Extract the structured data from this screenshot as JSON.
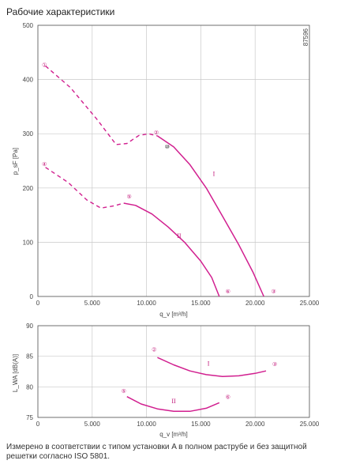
{
  "title": "Рабочие характеристики",
  "footnote": "Измерено в соответствии с типом установки A в полном раструбе и без защитной решетки согласно ISO 5801.",
  "colors": {
    "curve": "#d11f8f",
    "grid": "#c9c9c9",
    "axis": "#555555",
    "marker_text": "#c2187a"
  },
  "chart_data": [
    {
      "type": "line",
      "title": "",
      "xlabel": "q_v [m³/h]",
      "ylabel": "p_sF [Pa]",
      "xlim": [
        0,
        25000
      ],
      "ylim": [
        0,
        500
      ],
      "x_ticks": [
        "0",
        "5.000",
        "10.000",
        "15.000",
        "20.000",
        "25.000"
      ],
      "y_ticks": [
        "0",
        "100",
        "200",
        "300",
        "400",
        "500"
      ],
      "grid": true,
      "side_label": "87596",
      "series": [
        {
          "name": "I",
          "dashed": [
            [
              700,
              425
            ],
            [
              3000,
              385
            ],
            [
              5500,
              325
            ],
            [
              7200,
              280
            ],
            [
              8200,
              282
            ],
            [
              9300,
              297
            ],
            [
              10200,
              300
            ],
            [
              11000,
              296
            ]
          ],
          "solid": [
            [
              11000,
              296
            ],
            [
              12500,
              276
            ],
            [
              14000,
              243
            ],
            [
              15500,
              200
            ],
            [
              17000,
              148
            ],
            [
              18500,
              95
            ],
            [
              19800,
              45
            ],
            [
              20800,
              0
            ]
          ]
        },
        {
          "name": "II",
          "dashed": [
            [
              700,
              238
            ],
            [
              2800,
              210
            ],
            [
              4500,
              178
            ],
            [
              5800,
              163
            ],
            [
              7000,
              167
            ],
            [
              7900,
              172
            ]
          ],
          "solid": [
            [
              7900,
              172
            ],
            [
              9000,
              168
            ],
            [
              10500,
              152
            ],
            [
              12000,
              128
            ],
            [
              13500,
              100
            ],
            [
              15000,
              65
            ],
            [
              16000,
              35
            ],
            [
              16700,
              0
            ]
          ]
        }
      ],
      "markers": [
        {
          "label": "①",
          "x": 600,
          "y": 428
        },
        {
          "label": "②",
          "x": 10900,
          "y": 303
        },
        {
          "label": "⑩",
          "x": 11900,
          "y": 277
        },
        {
          "label": "③",
          "x": 21700,
          "y": 10
        },
        {
          "label": "④",
          "x": 600,
          "y": 245
        },
        {
          "label": "⑤",
          "x": 8400,
          "y": 185
        },
        {
          "label": "⑥",
          "x": 17500,
          "y": 10
        }
      ],
      "roman_labels": [
        {
          "label": "I",
          "x": 16200,
          "y": 222
        },
        {
          "label": "II",
          "x": 13000,
          "y": 108
        }
      ]
    },
    {
      "type": "line",
      "title": "",
      "xlabel": "q_v [m³/h]",
      "ylabel": "L_WA [dB(A)]",
      "xlim": [
        0,
        25000
      ],
      "ylim": [
        75,
        90
      ],
      "x_ticks": [
        "0",
        "5.000",
        "10.000",
        "15.000",
        "20.000",
        "25.000"
      ],
      "y_ticks": [
        "75",
        "80",
        "85",
        "90"
      ],
      "grid": true,
      "series": [
        {
          "name": "I",
          "solid": [
            [
              11000,
              84.8
            ],
            [
              12500,
              83.6
            ],
            [
              14000,
              82.6
            ],
            [
              15500,
              82.0
            ],
            [
              17000,
              81.7
            ],
            [
              18500,
              81.8
            ],
            [
              20000,
              82.2
            ],
            [
              21000,
              82.6
            ]
          ]
        },
        {
          "name": "II",
          "solid": [
            [
              8200,
              78.4
            ],
            [
              9500,
              77.2
            ],
            [
              11000,
              76.4
            ],
            [
              12500,
              76.0
            ],
            [
              14000,
              76.0
            ],
            [
              15500,
              76.5
            ],
            [
              16700,
              77.4
            ]
          ]
        }
      ],
      "markers": [
        {
          "label": "②",
          "x": 10700,
          "y": 86.2
        },
        {
          "label": "③",
          "x": 21800,
          "y": 83.8
        },
        {
          "label": "⑤",
          "x": 7900,
          "y": 79.4
        },
        {
          "label": "⑥",
          "x": 17500,
          "y": 78.4
        }
      ],
      "roman_labels": [
        {
          "label": "I",
          "x": 15700,
          "y": 83.5
        },
        {
          "label": "II",
          "x": 12500,
          "y": 77.3
        }
      ]
    }
  ]
}
